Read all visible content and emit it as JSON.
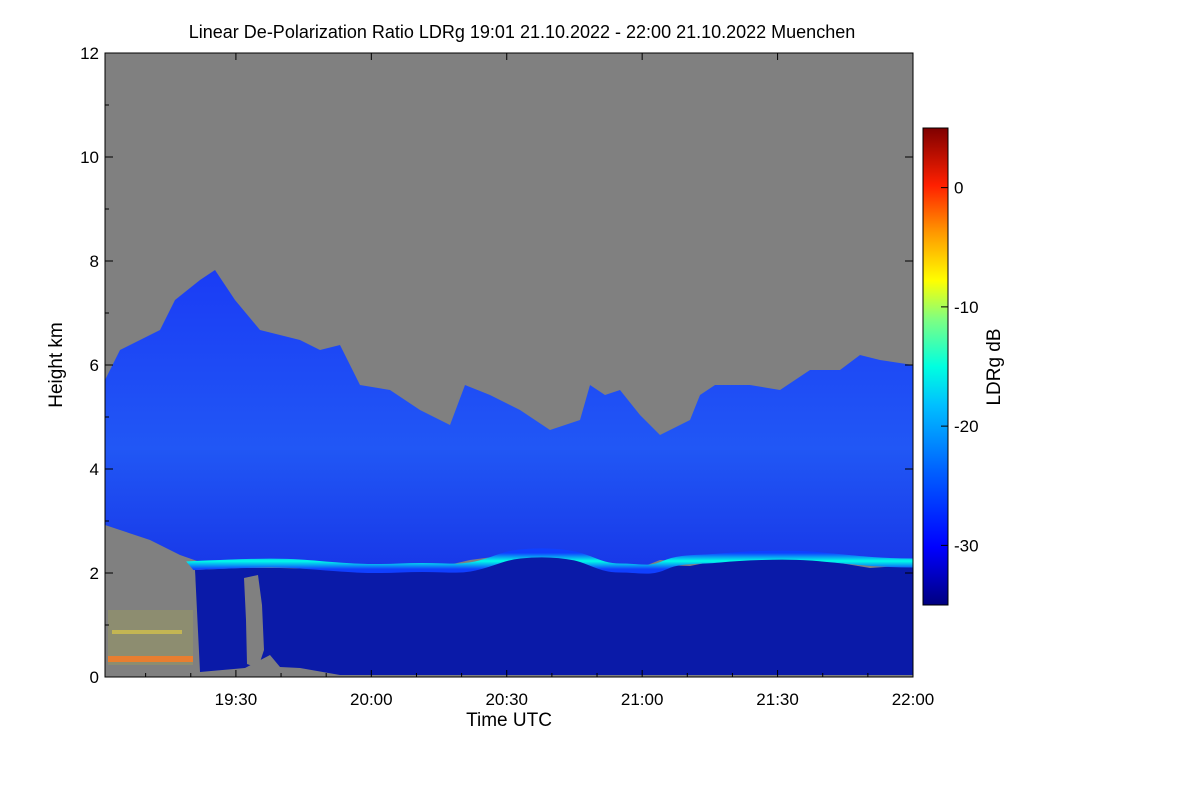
{
  "chart_data": {
    "type": "heatmap",
    "title": "Linear De-Polarization Ratio LDRg   19:01 21.10.2022 - 22:00 21.10.2022 Muenchen",
    "xlabel": "Time UTC",
    "ylabel": "Height km",
    "x_ticks": [
      "19:30",
      "20:00",
      "20:30",
      "21:00",
      "21:30",
      "22:00"
    ],
    "x_range": [
      "19:01",
      "22:00"
    ],
    "y_ticks": [
      "0",
      "2",
      "4",
      "6",
      "8",
      "10",
      "12"
    ],
    "ylim": [
      0,
      12
    ],
    "no_data_color": "#808080",
    "colorbar": {
      "label": "LDRg dB",
      "ticks": [
        "0",
        "-10",
        "-20",
        "-30"
      ],
      "range": [
        -35,
        5
      ],
      "colors": [
        "#00007f",
        "#0000ff",
        "#0060ff",
        "#00c0ff",
        "#00ffe0",
        "#80ff80",
        "#ffff00",
        "#ff9900",
        "#ff2000",
        "#7f0000"
      ]
    },
    "features": {
      "cloud_layer_top_km": [
        5.2,
        6.4,
        6.0,
        5.5,
        4.6,
        4.9,
        4.7,
        5.8,
        5.9
      ],
      "bright_layer_km": 2.2
    }
  }
}
